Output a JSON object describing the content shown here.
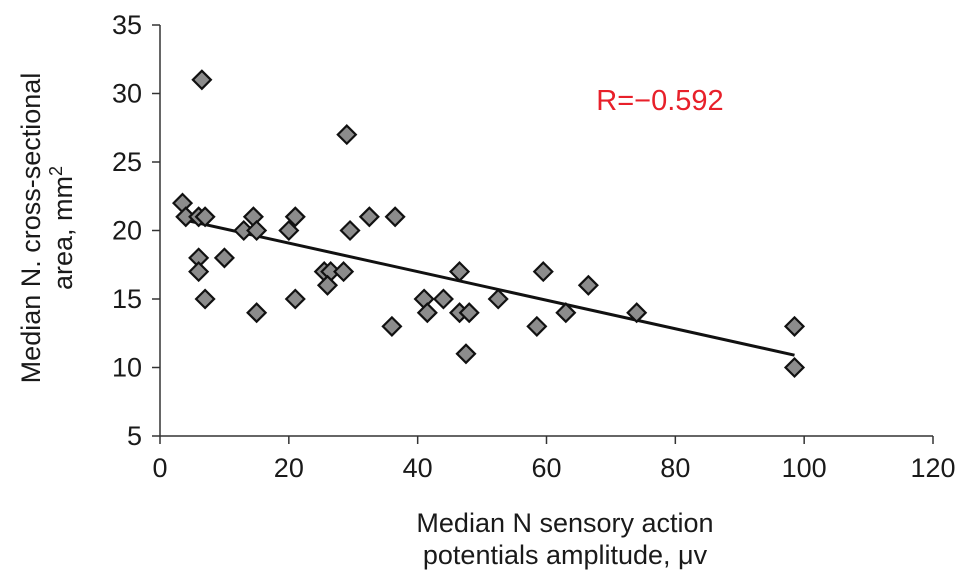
{
  "chart_data": {
    "type": "scatter",
    "title": "",
    "xlabel": [
      "Median N sensory action",
      "potentials amplitude, μv"
    ],
    "ylabel": {
      "line1": "Median N. cross-sectional",
      "line2": "area, mm",
      "line2_sup": "2"
    },
    "xlim": [
      0,
      120
    ],
    "ylim": [
      5,
      35
    ],
    "x_ticks": [
      0,
      20,
      40,
      60,
      80,
      100,
      120
    ],
    "y_ticks": [
      5,
      10,
      15,
      20,
      25,
      30,
      35
    ],
    "grid": false,
    "legend": "none",
    "annotation": "R=−0.592",
    "colors": {
      "marker_fill": "#8c8c8c",
      "marker_stroke": "#111111",
      "trendline": "#111111",
      "annotation": "#e8202a",
      "axis": "#333333"
    },
    "series": [
      {
        "x": [
          3.5,
          4,
          6.5,
          6,
          7,
          6,
          6,
          7,
          10,
          13,
          14.5,
          15,
          15,
          21,
          21,
          20,
          25.5,
          26.5,
          26,
          29,
          28.5,
          29.5,
          32.5,
          36.5,
          36,
          41,
          41.5,
          44,
          46.5,
          46.5,
          48,
          47.5,
          52.5,
          58.5,
          59.5,
          63,
          66.5,
          74,
          98.5,
          98.5
        ],
        "y": [
          22,
          21,
          31,
          21,
          21,
          18,
          17,
          15,
          18,
          20,
          21,
          20,
          14,
          21,
          15,
          20,
          17,
          17,
          16,
          27,
          17,
          20,
          21,
          21,
          13,
          15,
          14,
          15,
          17,
          14,
          14,
          11,
          15,
          13,
          17,
          14,
          16,
          14,
          13,
          10
        ]
      }
    ],
    "trendline": {
      "x": [
        3.5,
        98.5
      ],
      "y": [
        20.8,
        10.9
      ]
    }
  }
}
